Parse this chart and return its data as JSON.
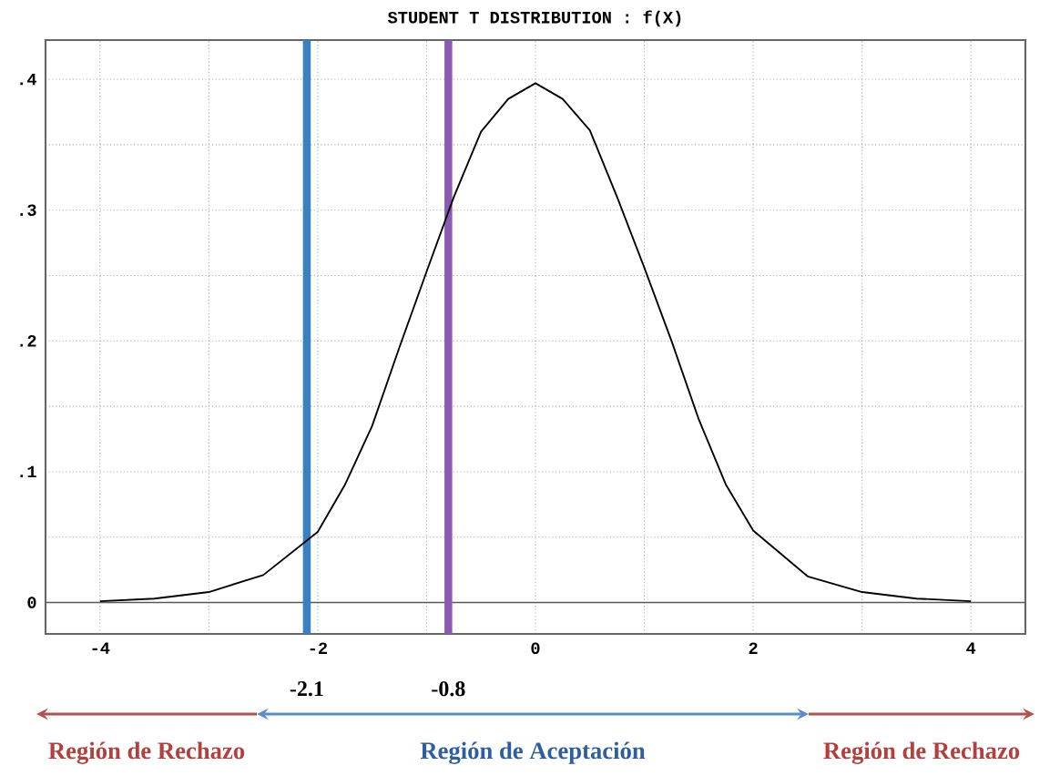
{
  "chart_data": {
    "type": "line",
    "title": "STUDENT T DISTRIBUTION : f(X)",
    "x": [
      -4,
      -3.5,
      -3,
      -2.5,
      -2,
      -1.75,
      -1.5,
      -1.25,
      -1,
      -0.75,
      -0.5,
      -0.25,
      0,
      0.25,
      0.5,
      0.75,
      1,
      1.25,
      1.5,
      1.75,
      2,
      2.5,
      3,
      3.5,
      4
    ],
    "series": [
      {
        "color": "#000000",
        "values": [
          0.001,
          0.003,
          0.008,
          0.021,
          0.054,
          0.09,
          0.135,
          0.195,
          0.253,
          0.31,
          0.36,
          0.385,
          0.397,
          0.385,
          0.361,
          0.31,
          0.256,
          0.2,
          0.14,
          0.09,
          0.055,
          0.02,
          0.008,
          0.003,
          0.001
        ]
      }
    ],
    "xlim": [
      -4.5,
      4.5
    ],
    "ylim": [
      -0.024,
      0.43
    ],
    "xticks": [
      -4,
      {
        "value": -3,
        "label": null
      },
      -2,
      {
        "value": -1,
        "label": null
      },
      0,
      {
        "value": 1,
        "label": null
      },
      2,
      {
        "value": 3,
        "label": null
      },
      4
    ],
    "yticks": [
      0,
      {
        "value": 0.05,
        "label": null
      },
      {
        "value": 0.1,
        "label": ".1"
      },
      {
        "value": 0.15,
        "label": null
      },
      {
        "value": 0.2,
        "label": ".2"
      },
      {
        "value": 0.25,
        "label": null
      },
      {
        "value": 0.3,
        "label": ".3"
      },
      {
        "value": 0.35,
        "label": null
      },
      {
        "value": 0.4,
        "label": ".4"
      }
    ],
    "grid": true,
    "marker": "none",
    "line_style": "solid",
    "ref_lines": [
      {
        "axis": "x",
        "value": -2.1,
        "label": "-2.1",
        "color": "#3a7fc1"
      },
      {
        "axis": "x",
        "value": -0.8,
        "label": "-0.8",
        "color": "#8a5bb0"
      }
    ],
    "annotations": [
      "Región de Rechazo",
      "Región de Aceptación",
      "Región de Rechazo"
    ]
  }
}
